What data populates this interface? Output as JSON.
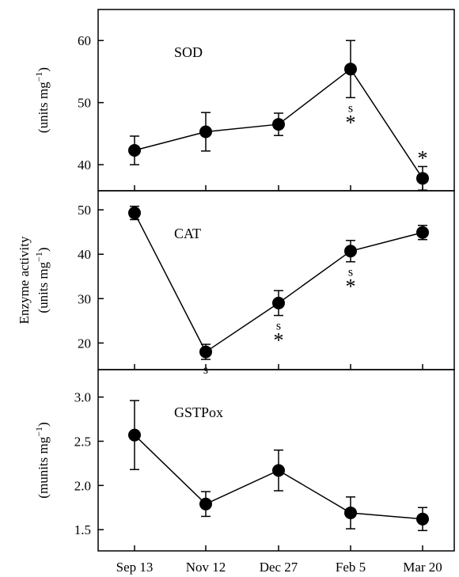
{
  "chart_data": {
    "type": "line",
    "shared_ylabel": "Enzyme activity",
    "categories": [
      "Sep 13",
      "Nov 12",
      "Dec 27",
      "Feb 5",
      "Mar 20"
    ],
    "panels": [
      {
        "id": "sod",
        "name": "SOD",
        "ylabel": "(units mg",
        "ylabel_sup": "−1",
        "ylabel_close": ")",
        "ylim": [
          35.8,
          65.0
        ],
        "yticks": [
          40,
          50,
          60
        ],
        "ytick_labels": [
          "40",
          "50",
          "60"
        ],
        "values": [
          42.3,
          45.3,
          46.5,
          55.4,
          37.8
        ],
        "err_low": [
          40.0,
          42.2,
          44.7,
          50.8,
          35.9
        ],
        "err_high": [
          44.6,
          48.4,
          48.3,
          60.0,
          39.7
        ],
        "annotations": [
          {
            "index": 3,
            "s": "s",
            "star": "*"
          },
          {
            "index": 4,
            "s": "",
            "star": "*"
          }
        ]
      },
      {
        "id": "cat",
        "name": "CAT",
        "ylabel": "(units mg",
        "ylabel_sup": "−1",
        "ylabel_close": ")",
        "ylim": [
          14.0,
          54.3
        ],
        "yticks": [
          20,
          30,
          40,
          50
        ],
        "ytick_labels": [
          "20",
          "30",
          "40",
          "50"
        ],
        "values": [
          49.3,
          18.0,
          29.0,
          40.7,
          44.9
        ],
        "err_low": [
          47.8,
          16.3,
          26.2,
          38.3,
          43.3
        ],
        "err_high": [
          50.8,
          19.7,
          31.8,
          43.1,
          46.5
        ],
        "annotations": [
          {
            "index": 1,
            "s": "s",
            "star": ""
          },
          {
            "index": 2,
            "s": "s",
            "star": "*"
          },
          {
            "index": 3,
            "s": "s",
            "star": "*"
          }
        ]
      },
      {
        "id": "gstpox",
        "name": "GSTPox",
        "ylabel": "(munits mg",
        "ylabel_sup": "−1",
        "ylabel_close": ")",
        "ylim": [
          1.26,
          3.31
        ],
        "yticks": [
          1.5,
          2.0,
          2.5,
          3.0
        ],
        "ytick_labels": [
          "1.5",
          "2.0",
          "2.5",
          "3.0"
        ],
        "values": [
          2.57,
          1.79,
          2.17,
          1.69,
          1.62
        ],
        "err_low": [
          2.18,
          1.65,
          1.94,
          1.51,
          1.49
        ],
        "err_high": [
          2.96,
          1.93,
          2.4,
          1.87,
          1.75
        ],
        "annotations": []
      }
    ],
    "grid": false,
    "legend": "none"
  }
}
